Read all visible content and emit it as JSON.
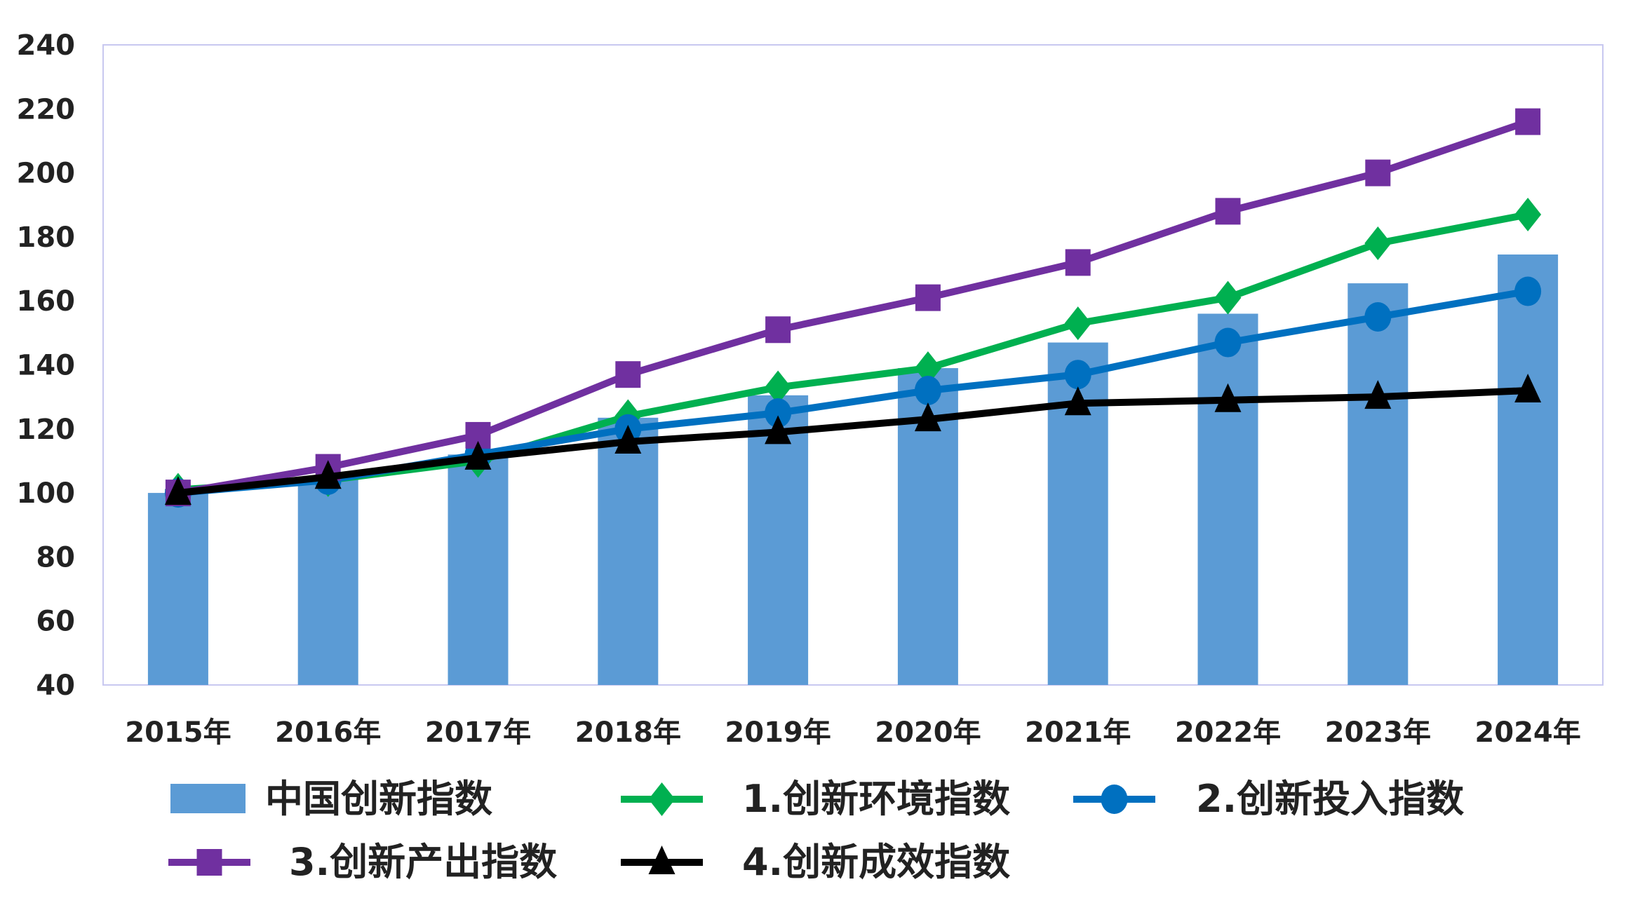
{
  "chart_data": {
    "type": "bar+line",
    "categories": [
      "2015年",
      "2016年",
      "2017年",
      "2018年",
      "2019年",
      "2020年",
      "2021年",
      "2022年",
      "2023年",
      "2024年"
    ],
    "ylim": [
      40,
      240
    ],
    "yticks": [
      40,
      60,
      80,
      100,
      120,
      140,
      160,
      180,
      200,
      220,
      240
    ],
    "grid": false,
    "legend_position": "bottom",
    "series": [
      {
        "name": "中国创新指数",
        "type": "bar",
        "color": "#5b9bd5",
        "values": [
          100,
          104.5,
          112,
          123.5,
          130.5,
          139,
          147,
          156,
          165.5,
          174.5
        ]
      },
      {
        "name": "1.创新环境指数",
        "type": "line",
        "marker": "diamond",
        "color": "#00b050",
        "values": [
          101,
          104,
          110,
          124,
          133,
          139,
          153,
          161,
          178,
          187
        ]
      },
      {
        "name": "2.创新投入指数",
        "type": "line",
        "marker": "circle",
        "color": "#0070c0",
        "values": [
          100,
          104,
          112,
          120,
          125,
          132,
          137,
          147,
          155,
          163
        ]
      },
      {
        "name": "3.创新产出指数",
        "type": "line",
        "marker": "square",
        "color": "#7030a0",
        "values": [
          100,
          108,
          118,
          137,
          151,
          161,
          172,
          188,
          200,
          216
        ]
      },
      {
        "name": "4.创新成效指数",
        "type": "line",
        "marker": "triangle",
        "color": "#000000",
        "values": [
          100,
          105,
          111,
          116,
          119,
          123,
          128,
          129,
          130,
          132
        ]
      }
    ]
  }
}
